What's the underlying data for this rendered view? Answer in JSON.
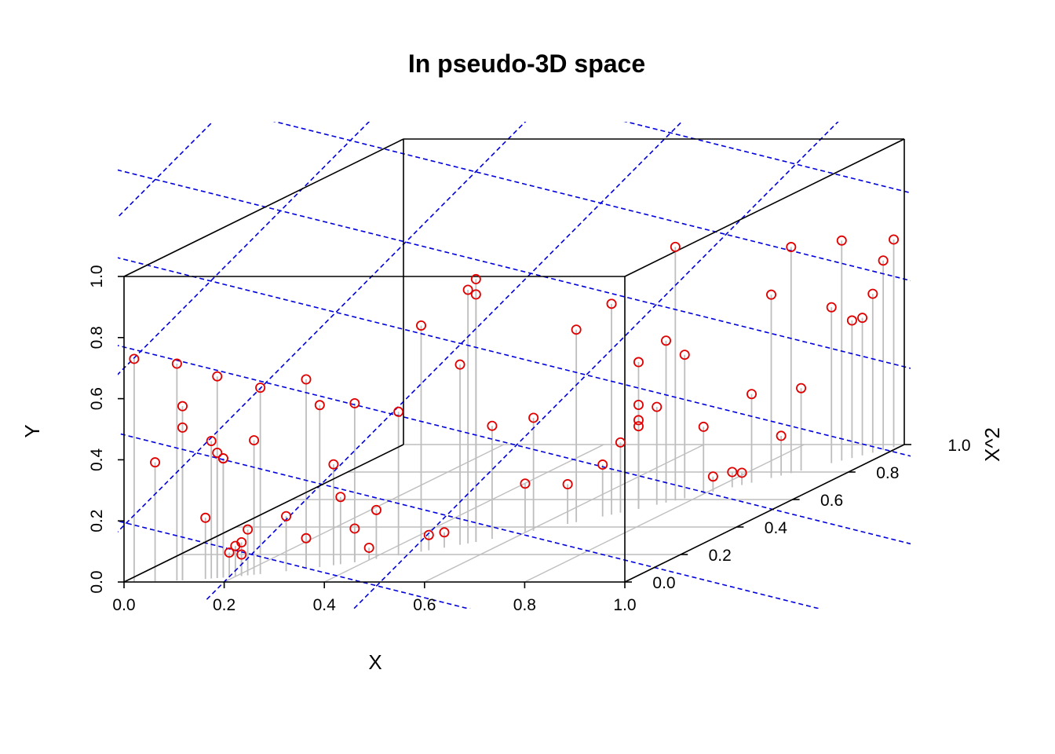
{
  "chart_data": {
    "type": "scatter",
    "subtype": "scatterplot3d",
    "title": "In pseudo-3D space",
    "xlabel": "X",
    "ylabel": "Y",
    "zlabel": "X^2",
    "xlim": [
      0,
      1
    ],
    "ylim": [
      0,
      1
    ],
    "zlim": [
      0,
      1
    ],
    "x_ticks": [
      "0.0",
      "0.2",
      "0.4",
      "0.6",
      "0.8",
      "1.0"
    ],
    "y_ticks": [
      "0.0",
      "0.2",
      "0.4",
      "0.6",
      "0.8",
      "1.0"
    ],
    "z_ticks": [
      "0.0",
      "0.2",
      "0.4",
      "0.6",
      "0.8",
      "1.0"
    ],
    "point_color": "#e00000",
    "drop_line_color": "#bebebe",
    "plane_color": "#0000dd",
    "box_color": "#000000",
    "grid": true,
    "drop_lines": true,
    "fitted_plane": true,
    "points": [
      [
        0.02,
        0.73
      ],
      [
        0.06,
        0.39
      ],
      [
        0.1,
        0.71
      ],
      [
        0.11,
        0.57
      ],
      [
        0.11,
        0.5
      ],
      [
        0.16,
        0.45
      ],
      [
        0.17,
        0.66
      ],
      [
        0.15,
        0.2
      ],
      [
        0.17,
        0.41
      ],
      [
        0.18,
        0.39
      ],
      [
        0.18,
        0.39
      ],
      [
        0.19,
        0.08
      ],
      [
        0.2,
        0.1
      ],
      [
        0.21,
        0.07
      ],
      [
        0.21,
        0.11
      ],
      [
        0.22,
        0.15
      ],
      [
        0.23,
        0.44
      ],
      [
        0.24,
        0.61
      ],
      [
        0.28,
        0.18
      ],
      [
        0.31,
        0.62
      ],
      [
        0.31,
        0.1
      ],
      [
        0.33,
        0.53
      ],
      [
        0.35,
        0.33
      ],
      [
        0.36,
        0.22
      ],
      [
        0.38,
        0.11
      ],
      [
        0.38,
        0.52
      ],
      [
        0.4,
        0.04
      ],
      [
        0.41,
        0.16
      ],
      [
        0.44,
        0.47
      ],
      [
        0.47,
        0.74
      ],
      [
        0.48,
        0.05
      ],
      [
        0.5,
        0.05
      ],
      [
        0.52,
        0.59
      ],
      [
        0.53,
        0.83
      ],
      [
        0.54,
        0.81
      ],
      [
        0.54,
        0.86
      ],
      [
        0.56,
        0.37
      ],
      [
        0.6,
        0.16
      ],
      [
        0.61,
        0.37
      ],
      [
        0.65,
        0.13
      ],
      [
        0.66,
        0.63
      ],
      [
        0.69,
        0.17
      ],
      [
        0.7,
        0.69
      ],
      [
        0.71,
        0.23
      ],
      [
        0.73,
        0.48
      ],
      [
        0.73,
        0.27
      ],
      [
        0.73,
        0.29
      ],
      [
        0.73,
        0.34
      ],
      [
        0.75,
        0.32
      ],
      [
        0.76,
        0.53
      ],
      [
        0.77,
        0.83
      ],
      [
        0.78,
        0.47
      ],
      [
        0.8,
        0.22
      ],
      [
        0.81,
        0.05
      ],
      [
        0.83,
        0.05
      ],
      [
        0.84,
        0.04
      ],
      [
        0.85,
        0.29
      ],
      [
        0.87,
        0.6
      ],
      [
        0.88,
        0.13
      ],
      [
        0.89,
        0.74
      ],
      [
        0.9,
        0.27
      ],
      [
        0.94,
        0.72
      ],
      [
        0.95,
        0.45
      ],
      [
        0.93,
        0.51
      ],
      [
        0.96,
        0.45
      ],
      [
        0.97,
        0.52
      ],
      [
        0.98,
        0.62
      ],
      [
        0.99,
        0.68
      ]
    ]
  }
}
